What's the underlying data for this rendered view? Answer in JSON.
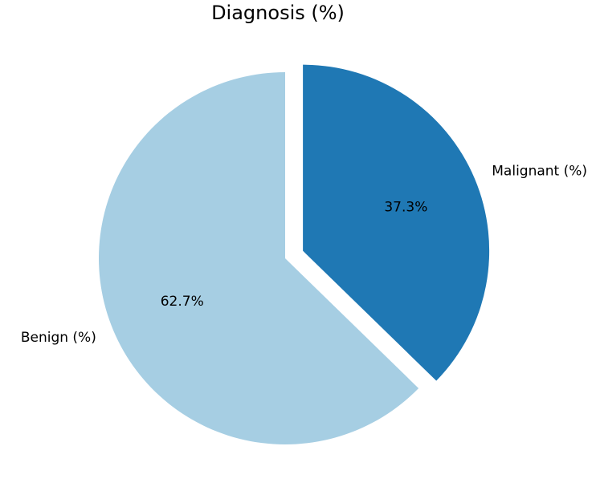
{
  "chart_data": {
    "type": "pie",
    "title": "Diagnosis (%)",
    "slices": [
      {
        "label": "Malignant (%)",
        "value": 37.3,
        "pct_label": "37.3%",
        "color": "#1f78b4",
        "exploded": true
      },
      {
        "label": "Benign (%)",
        "value": 62.7,
        "pct_label": "62.7%",
        "color": "#a6cee3",
        "exploded": false
      }
    ],
    "start_angle_deg": 90,
    "direction": "clockwise"
  }
}
